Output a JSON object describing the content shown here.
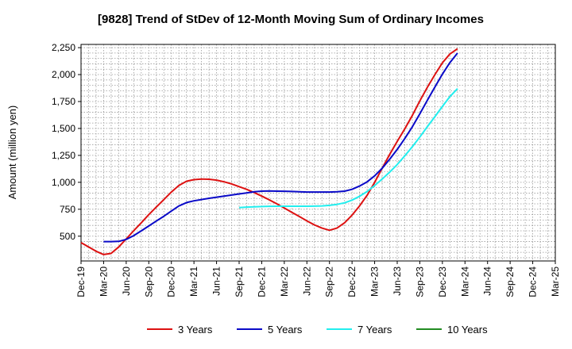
{
  "chart_data": {
    "type": "line",
    "title": "[9828]  Trend of StDev of 12-Month Moving Sum of Ordinary Incomes",
    "xlabel": "",
    "ylabel": "Amount (million yen)",
    "ylim": [
      270,
      2280
    ],
    "y_ticks": [
      500,
      750,
      1000,
      1250,
      1500,
      1750,
      2000,
      2250
    ],
    "y_tick_labels": [
      "500",
      "750",
      "1,000",
      "1,250",
      "1,500",
      "1,750",
      "2,000",
      "2,250"
    ],
    "x_tick_labels": [
      "Dec-19",
      "Mar-20",
      "Jun-20",
      "Sep-20",
      "Dec-20",
      "Mar-21",
      "Jun-21",
      "Sep-21",
      "Dec-21",
      "Mar-22",
      "Jun-22",
      "Sep-22",
      "Dec-22",
      "Mar-23",
      "Jun-23",
      "Sep-23",
      "Dec-23",
      "Mar-24",
      "Jun-24",
      "Sep-24",
      "Dec-24",
      "Mar-25"
    ],
    "grid": true,
    "legend_position": "bottom",
    "series": [
      {
        "name": "3 Years",
        "color": "#dd1111",
        "points": [
          [
            0,
            440
          ],
          [
            0.33,
            400
          ],
          [
            0.67,
            360
          ],
          [
            1.0,
            330
          ],
          [
            1.33,
            340
          ],
          [
            1.67,
            400
          ],
          [
            2.0,
            475
          ],
          [
            2.33,
            550
          ],
          [
            2.67,
            625
          ],
          [
            3.0,
            700
          ],
          [
            3.33,
            770
          ],
          [
            3.67,
            840
          ],
          [
            4.0,
            910
          ],
          [
            4.33,
            970
          ],
          [
            4.67,
            1010
          ],
          [
            5.0,
            1025
          ],
          [
            5.33,
            1030
          ],
          [
            5.67,
            1028
          ],
          [
            6.0,
            1020
          ],
          [
            6.33,
            1005
          ],
          [
            6.67,
            985
          ],
          [
            7.0,
            960
          ],
          [
            7.33,
            935
          ],
          [
            7.67,
            905
          ],
          [
            8.0,
            872
          ],
          [
            8.33,
            838
          ],
          [
            8.67,
            800
          ],
          [
            9.0,
            762
          ],
          [
            9.33,
            722
          ],
          [
            9.67,
            682
          ],
          [
            10.0,
            642
          ],
          [
            10.33,
            605
          ],
          [
            10.67,
            575
          ],
          [
            11.0,
            555
          ],
          [
            11.33,
            575
          ],
          [
            11.67,
            625
          ],
          [
            12.0,
            695
          ],
          [
            12.33,
            780
          ],
          [
            12.67,
            880
          ],
          [
            13.0,
            1000
          ],
          [
            13.33,
            1130
          ],
          [
            13.67,
            1260
          ],
          [
            14.0,
            1380
          ],
          [
            14.33,
            1495
          ],
          [
            14.67,
            1620
          ],
          [
            15.0,
            1755
          ],
          [
            15.33,
            1880
          ],
          [
            15.67,
            2000
          ],
          [
            16.0,
            2110
          ],
          [
            16.33,
            2190
          ],
          [
            16.67,
            2240
          ]
        ]
      },
      {
        "name": "5 Years",
        "color": "#0a0ac8",
        "points": [
          [
            1.0,
            450
          ],
          [
            1.33,
            450
          ],
          [
            1.67,
            452
          ],
          [
            2.0,
            470
          ],
          [
            2.33,
            505
          ],
          [
            2.67,
            550
          ],
          [
            3.0,
            595
          ],
          [
            3.33,
            640
          ],
          [
            3.67,
            685
          ],
          [
            4.0,
            733
          ],
          [
            4.33,
            780
          ],
          [
            4.67,
            812
          ],
          [
            5.0,
            828
          ],
          [
            5.33,
            840
          ],
          [
            5.67,
            852
          ],
          [
            6.0,
            862
          ],
          [
            6.33,
            872
          ],
          [
            6.67,
            882
          ],
          [
            7.0,
            892
          ],
          [
            7.33,
            902
          ],
          [
            7.67,
            912
          ],
          [
            8.0,
            918
          ],
          [
            8.33,
            920
          ],
          [
            8.67,
            918
          ],
          [
            9.0,
            917
          ],
          [
            9.33,
            915
          ],
          [
            9.67,
            912
          ],
          [
            10.0,
            910
          ],
          [
            10.33,
            910
          ],
          [
            10.67,
            910
          ],
          [
            11.0,
            910
          ],
          [
            11.33,
            912
          ],
          [
            11.67,
            918
          ],
          [
            12.0,
            935
          ],
          [
            12.33,
            965
          ],
          [
            12.67,
            1005
          ],
          [
            13.0,
            1060
          ],
          [
            13.33,
            1130
          ],
          [
            13.67,
            1215
          ],
          [
            14.0,
            1305
          ],
          [
            14.33,
            1405
          ],
          [
            14.67,
            1515
          ],
          [
            15.0,
            1635
          ],
          [
            15.33,
            1760
          ],
          [
            15.67,
            1885
          ],
          [
            16.0,
            2005
          ],
          [
            16.33,
            2110
          ],
          [
            16.67,
            2200
          ]
        ]
      },
      {
        "name": "7 Years",
        "color": "#22eeee",
        "points": [
          [
            7.0,
            765
          ],
          [
            7.33,
            770
          ],
          [
            7.67,
            773
          ],
          [
            8.0,
            775
          ],
          [
            8.33,
            777
          ],
          [
            8.67,
            778
          ],
          [
            9.0,
            778
          ],
          [
            9.33,
            778
          ],
          [
            9.67,
            778
          ],
          [
            10.0,
            778
          ],
          [
            10.33,
            779
          ],
          [
            10.67,
            781
          ],
          [
            11.0,
            786
          ],
          [
            11.33,
            795
          ],
          [
            11.67,
            810
          ],
          [
            12.0,
            835
          ],
          [
            12.33,
            870
          ],
          [
            12.67,
            915
          ],
          [
            13.0,
            970
          ],
          [
            13.33,
            1030
          ],
          [
            13.67,
            1095
          ],
          [
            14.0,
            1165
          ],
          [
            14.33,
            1245
          ],
          [
            14.67,
            1330
          ],
          [
            15.0,
            1420
          ],
          [
            15.33,
            1515
          ],
          [
            15.67,
            1610
          ],
          [
            16.0,
            1705
          ],
          [
            16.33,
            1795
          ],
          [
            16.67,
            1870
          ]
        ]
      },
      {
        "name": "10 Years",
        "color": "#228b22",
        "points": []
      }
    ]
  }
}
